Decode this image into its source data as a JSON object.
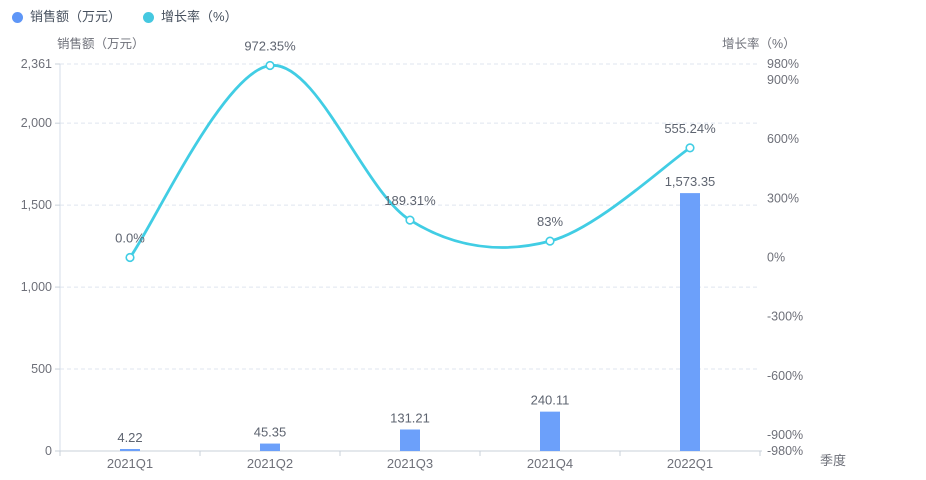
{
  "legend": {
    "items": [
      {
        "label": "销售额（万元）",
        "color": "#5e96f7"
      },
      {
        "label": "增长率（%）",
        "color": "#45c8e0"
      }
    ]
  },
  "chart_data": {
    "type": "bar+line",
    "categories": [
      "2021Q1",
      "2021Q2",
      "2021Q3",
      "2021Q4",
      "2022Q1"
    ],
    "series": [
      {
        "name": "销售额（万元）",
        "type": "bar",
        "axis": "left",
        "color": "#6ca0fa",
        "values": [
          4.22,
          45.35,
          131.21,
          240.11,
          1573.35
        ],
        "labels": [
          "4.22",
          "45.35",
          "131.21",
          "240.11",
          "1,573.35"
        ]
      },
      {
        "name": "增长率（%）",
        "type": "line",
        "axis": "right",
        "color": "#41cde4",
        "smooth": true,
        "values": [
          0.0,
          972.35,
          189.31,
          83,
          555.24
        ],
        "labels": [
          "0.0%",
          "972.35%",
          "189.31%",
          "83%",
          "555.24%"
        ]
      }
    ],
    "left_axis": {
      "title": "销售额（万元）",
      "min": 0,
      "max": 2361,
      "tick_values": [
        0,
        500,
        1000,
        1500,
        2000,
        2361
      ],
      "tick_labels": [
        "0",
        "500",
        "1,000",
        "1,500",
        "2,000",
        "2,361"
      ]
    },
    "right_axis": {
      "title": "增长率（%）",
      "min": -980,
      "max": 980,
      "tick_values": [
        -980,
        -900,
        -600,
        -300,
        0,
        300,
        600,
        900,
        980
      ],
      "tick_labels": [
        "-980%",
        "-900%",
        "-600%",
        "-300%",
        "0%",
        "300%",
        "600%",
        "900%",
        "980%"
      ]
    },
    "x_axis": {
      "name": "季度",
      "labels": [
        "2021Q1",
        "2021Q2",
        "2021Q3",
        "2021Q4",
        "2022Q1"
      ]
    },
    "grid": {
      "show": true,
      "style": "dashed"
    },
    "legend_position": "top-left"
  },
  "style": {
    "grid_color": "#dfe5ef",
    "axis_line_color": "#d6dee8",
    "tick_label_color": "#6e7079",
    "data_label_color": "#5e6470",
    "marker_fill": "#ffffff"
  }
}
